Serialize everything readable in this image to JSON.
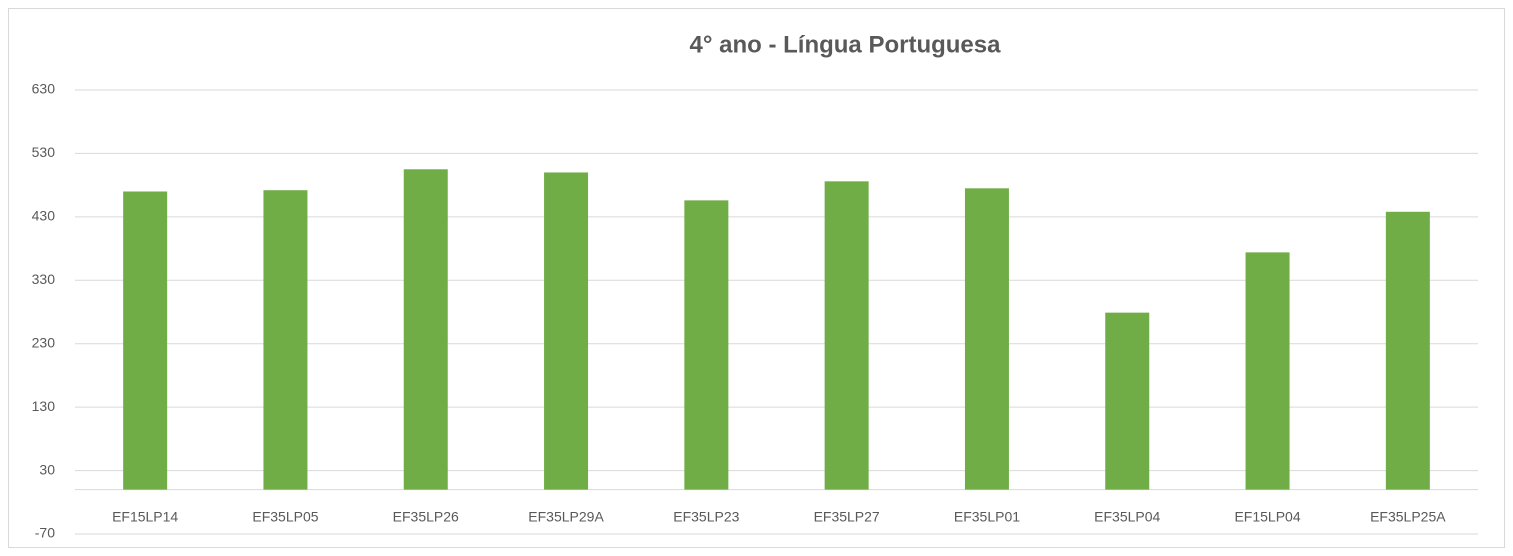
{
  "chart_data": {
    "type": "bar",
    "title": "4° ano - Língua Portuguesa",
    "categories": [
      "EF15LP14",
      "EF35LP05",
      "EF35LP26",
      "EF35LP29A",
      "EF35LP23",
      "EF35LP27",
      "EF35LP01",
      "EF35LP04",
      "EF15LP04",
      "EF35LP25A"
    ],
    "values": [
      470,
      472,
      505,
      500,
      456,
      486,
      475,
      279,
      374,
      438
    ],
    "color": "#70ad47",
    "ylim": [
      -70,
      630
    ],
    "yticks": [
      -70,
      30,
      130,
      230,
      330,
      430,
      530,
      630
    ],
    "grid": true
  }
}
